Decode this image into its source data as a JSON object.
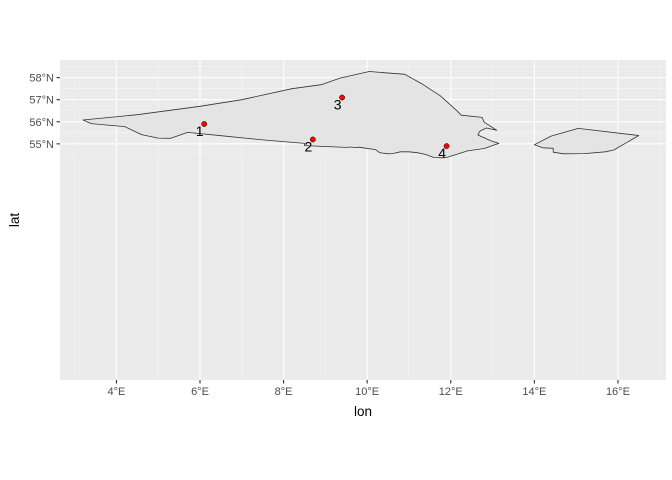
{
  "chart_data": {
    "type": "map",
    "xlabel": "lon",
    "ylabel": "lat",
    "xlim": [
      2.65,
      17.15
    ],
    "ylim": [
      44.3,
      58.8
    ],
    "x_ticks": [
      {
        "value": 4,
        "label": "4°E"
      },
      {
        "value": 6,
        "label": "6°E"
      },
      {
        "value": 8,
        "label": "8°E"
      },
      {
        "value": 10,
        "label": "10°E"
      },
      {
        "value": 12,
        "label": "12°E"
      },
      {
        "value": 14,
        "label": "14°E"
      },
      {
        "value": 16,
        "label": "16°E"
      }
    ],
    "y_ticks": [
      {
        "value": 55,
        "label": "55°N"
      },
      {
        "value": 56,
        "label": "56°N"
      },
      {
        "value": 57,
        "label": "57°N"
      },
      {
        "value": 58,
        "label": "58°N"
      }
    ],
    "grid": true,
    "polygons": [
      {
        "coords": [
          [
            3.2,
            56.08
          ],
          [
            3.4,
            55.92
          ],
          [
            4.2,
            55.78
          ],
          [
            4.6,
            55.42
          ],
          [
            5.0,
            55.26
          ],
          [
            5.3,
            55.25
          ],
          [
            5.7,
            55.52
          ],
          [
            6.5,
            55.37
          ],
          [
            7.5,
            55.18
          ],
          [
            8.5,
            55.02
          ],
          [
            8.5,
            54.92
          ],
          [
            9.5,
            54.84
          ],
          [
            9.62,
            54.86
          ],
          [
            9.7,
            54.83
          ],
          [
            9.8,
            54.85
          ],
          [
            9.9,
            54.82
          ],
          [
            10.2,
            54.74
          ],
          [
            10.3,
            54.6
          ],
          [
            10.5,
            54.55
          ],
          [
            10.6,
            54.56
          ],
          [
            10.8,
            54.64
          ],
          [
            11.0,
            54.64
          ],
          [
            11.2,
            54.6
          ],
          [
            11.4,
            54.52
          ],
          [
            11.6,
            54.38
          ],
          [
            11.8,
            54.37
          ],
          [
            11.9,
            54.38
          ],
          [
            12.1,
            54.5
          ],
          [
            12.4,
            54.68
          ],
          [
            12.8,
            54.79
          ],
          [
            13.15,
            55.02
          ],
          [
            12.95,
            55.15
          ],
          [
            12.65,
            55.4
          ],
          [
            12.7,
            55.58
          ],
          [
            12.85,
            55.72
          ],
          [
            13.1,
            55.62
          ],
          [
            12.8,
            55.98
          ],
          [
            12.75,
            56.2
          ],
          [
            12.25,
            56.3
          ],
          [
            12.15,
            56.5
          ],
          [
            11.75,
            57.18
          ],
          [
            11.3,
            57.73
          ],
          [
            10.9,
            58.15
          ],
          [
            10.05,
            58.28
          ],
          [
            9.35,
            57.98
          ],
          [
            8.9,
            57.68
          ],
          [
            8.2,
            57.5
          ],
          [
            7.0,
            57.0
          ],
          [
            6.0,
            56.7
          ],
          [
            4.5,
            56.32
          ]
        ]
      },
      {
        "coords": [
          [
            15.05,
            55.7
          ],
          [
            16.5,
            55.38
          ],
          [
            16.2,
            55.05
          ],
          [
            15.9,
            54.72
          ],
          [
            15.7,
            54.64
          ],
          [
            15.2,
            54.56
          ],
          [
            14.7,
            54.55
          ],
          [
            14.45,
            54.62
          ],
          [
            14.45,
            54.8
          ],
          [
            14.2,
            54.82
          ],
          [
            14.0,
            54.96
          ],
          [
            14.4,
            55.35
          ]
        ]
      }
    ],
    "points": [
      {
        "label": "1",
        "lon": 6.1,
        "lat": 55.9
      },
      {
        "label": "2",
        "lon": 8.7,
        "lat": 55.2
      },
      {
        "label": "3",
        "lon": 9.4,
        "lat": 57.1
      },
      {
        "label": "4",
        "lon": 11.9,
        "lat": 54.9
      }
    ],
    "colors": {
      "panel_background": "#ebebeb",
      "grid_major": "#ffffff",
      "grid_minor": "#f5f5f5",
      "land_fill": "#e4e4e4",
      "land_stroke": "#333333",
      "point_fill": "#ff0000",
      "point_stroke": "#000000",
      "tick_text": "#4d4d4d"
    }
  }
}
